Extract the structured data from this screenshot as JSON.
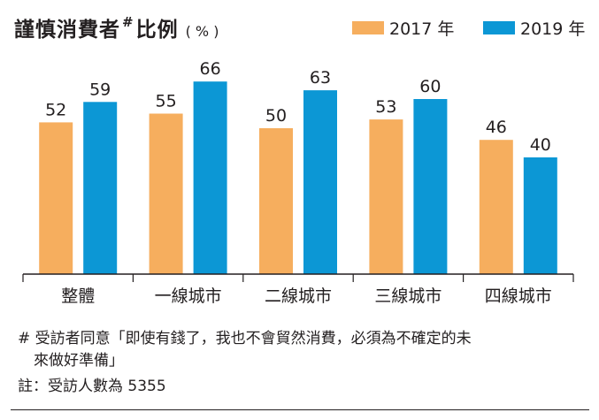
{
  "header": {
    "title": "謹慎消費者",
    "title_mark": "#",
    "title_suffix": "比例",
    "unit": "( % )"
  },
  "colors": {
    "series_2017": "#f6ae5e",
    "series_2019": "#0c97d5",
    "text": "#231f20"
  },
  "chart_data": {
    "type": "bar",
    "categories": [
      "整體",
      "一線城市",
      "二線城市",
      "三線城市",
      "四線城市"
    ],
    "series": [
      {
        "name": "2017 年",
        "values": [
          52,
          55,
          50,
          53,
          46
        ]
      },
      {
        "name": "2019 年",
        "values": [
          59,
          66,
          63,
          60,
          40
        ]
      }
    ],
    "ylim": [
      0,
      70
    ],
    "legend_position": "top-right",
    "grid": false
  },
  "footnotes": {
    "line1": "# 受訪者同意「即使有錢了，我也不會貿然消費，必須為不確定的未",
    "line2": "來做好準備」",
    "line3": "註：受訪人數為 5355"
  }
}
